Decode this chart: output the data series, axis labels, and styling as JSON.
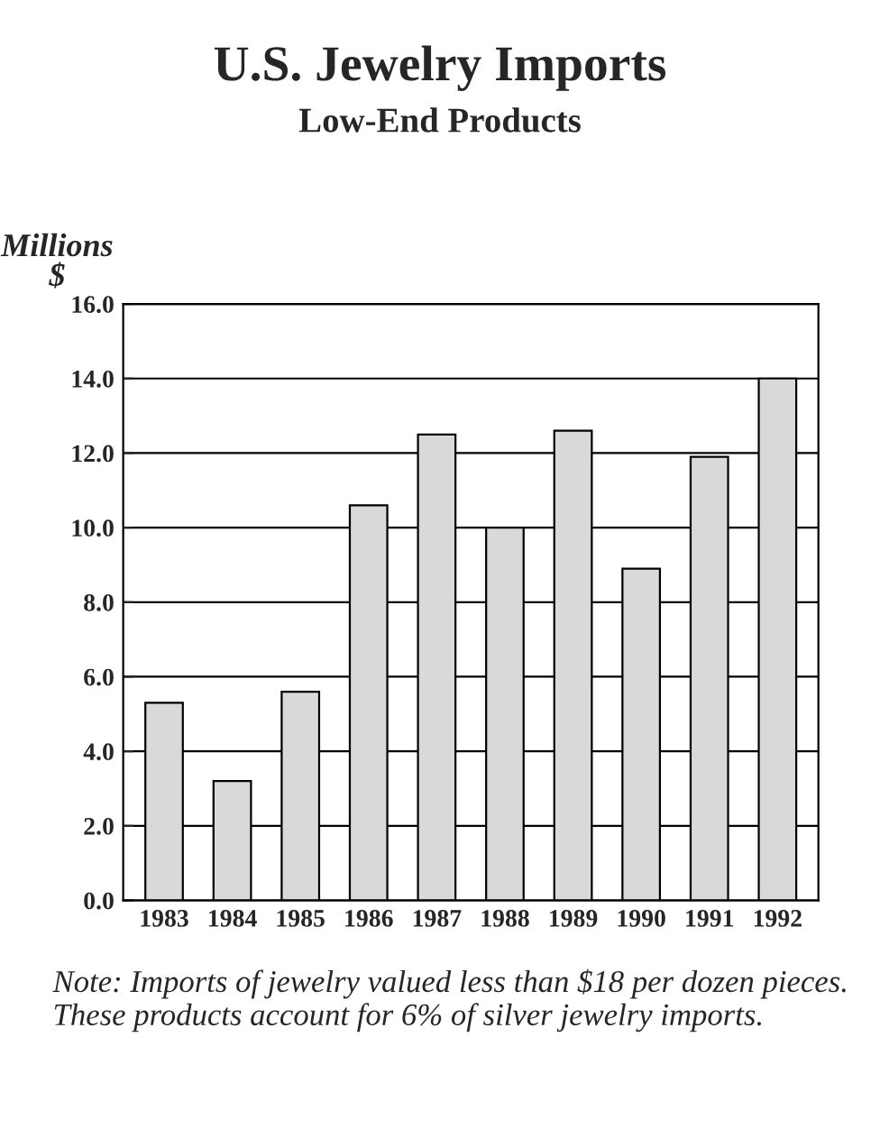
{
  "chart_data": {
    "type": "bar",
    "title": "U.S. Jewelry Imports",
    "subtitle": "Low-End Products",
    "ylabel": "Millions\n$",
    "categories": [
      "1983",
      "1984",
      "1985",
      "1986",
      "1987",
      "1988",
      "1989",
      "1990",
      "1991",
      "1992"
    ],
    "values": [
      5.3,
      3.2,
      5.6,
      10.6,
      12.5,
      10.0,
      12.6,
      8.9,
      11.9,
      14.0
    ],
    "color": "#d9d9d9",
    "ylim": [
      0,
      16
    ],
    "yticks": [
      {
        "value": 0,
        "label": "0.0"
      },
      {
        "value": 2,
        "label": "2.0"
      },
      {
        "value": 4,
        "label": "4.0"
      },
      {
        "value": 6,
        "label": "6.0"
      },
      {
        "value": 8,
        "label": "8.0"
      },
      {
        "value": 10,
        "label": "10.0"
      },
      {
        "value": 12,
        "label": "12.0"
      },
      {
        "value": 14,
        "label": "14.0"
      },
      {
        "value": 16,
        "label": "16.0"
      }
    ],
    "grid": "y",
    "annotations": [
      "Note: Imports of jewelry valued less than $18 per dozen pieces. These products account for 6% of silver jewelry imports."
    ]
  }
}
